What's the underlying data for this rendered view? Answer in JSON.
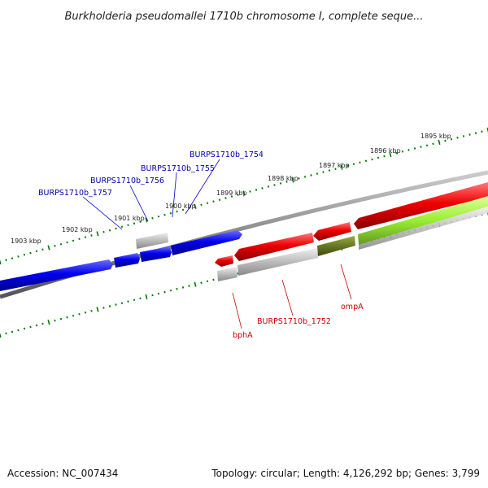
{
  "title": "Burkholderia pseudomallei 1710b chromosome I, complete seque...",
  "accession": "Accession: NC_007434",
  "topology": "Topology: circular; Length: 4,126,292 bp; Genes: 3,799",
  "colors": {
    "forward_gene": "#0000ee",
    "reverse_gene": "#ee0000",
    "pseudo_gene": "#bbbbbb",
    "misc_feature": "#99ee33",
    "overlap_feature": "#667722",
    "backbone": "#888888",
    "tick": "#007700"
  },
  "scale_labels": [
    "1903 kbp",
    "1902 kbp",
    "1901 kbp",
    "1900 kbp",
    "1899 kbp",
    "1898 kbp",
    "1897 kbp",
    "1896 kbp",
    "1895 kbp"
  ],
  "genes_upper": [
    {
      "name": "BURPS1710b_1757"
    },
    {
      "name": "BURPS1710b_1756"
    },
    {
      "name": "BURPS1710b_1755"
    },
    {
      "name": "BURPS1710b_1754"
    }
  ],
  "genes_lower": [
    {
      "name": "bphA"
    },
    {
      "name": "BURPS1710b_1752"
    },
    {
      "name": "ompA"
    }
  ]
}
